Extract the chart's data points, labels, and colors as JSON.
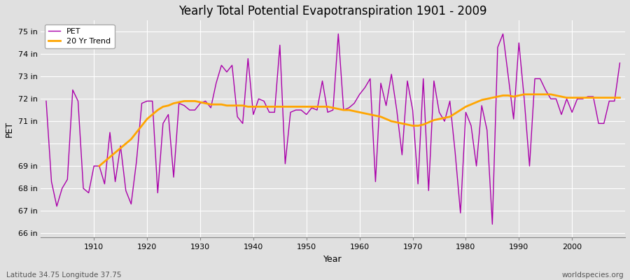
{
  "title": "Yearly Total Potential Evapotranspiration 1901 - 2009",
  "xlabel": "Year",
  "ylabel": "PET",
  "subtitle_lat_lon": "Latitude 34.75 Longitude 37.75",
  "watermark": "worldspecies.org",
  "ylim": [
    65.8,
    75.5
  ],
  "yticks": [
    66,
    67,
    68,
    69,
    70,
    71,
    72,
    73,
    74,
    75
  ],
  "ytick_labels": [
    "66 in",
    "67 in",
    "68 in",
    "69 in",
    "",
    "71 in",
    "72 in",
    "73 in",
    "74 in",
    "75 in"
  ],
  "xlim": [
    1900,
    2010
  ],
  "xticks": [
    1910,
    1920,
    1930,
    1940,
    1950,
    1960,
    1970,
    1980,
    1990,
    2000
  ],
  "pet_color": "#aa00aa",
  "trend_color": "#FFA500",
  "legend_pet": "PET",
  "legend_trend": "20 Yr Trend",
  "background_color": "#e0e0e0",
  "plot_bg_color": "#e0e0e0",
  "grid_color": "#ffffff",
  "years": [
    1901,
    1902,
    1903,
    1904,
    1905,
    1906,
    1907,
    1908,
    1909,
    1910,
    1911,
    1912,
    1913,
    1914,
    1915,
    1916,
    1917,
    1918,
    1919,
    1920,
    1921,
    1922,
    1923,
    1924,
    1925,
    1926,
    1927,
    1928,
    1929,
    1930,
    1931,
    1932,
    1933,
    1934,
    1935,
    1936,
    1937,
    1938,
    1939,
    1940,
    1941,
    1942,
    1943,
    1944,
    1945,
    1946,
    1947,
    1948,
    1949,
    1950,
    1951,
    1952,
    1953,
    1954,
    1955,
    1956,
    1957,
    1958,
    1959,
    1960,
    1961,
    1962,
    1963,
    1964,
    1965,
    1966,
    1967,
    1968,
    1969,
    1970,
    1971,
    1972,
    1973,
    1974,
    1975,
    1976,
    1977,
    1978,
    1979,
    1980,
    1981,
    1982,
    1983,
    1984,
    1985,
    1986,
    1987,
    1988,
    1989,
    1990,
    1991,
    1992,
    1993,
    1994,
    1995,
    1996,
    1997,
    1998,
    1999,
    2000,
    2001,
    2002,
    2003,
    2004,
    2005,
    2006,
    2007,
    2008,
    2009
  ],
  "pet_values": [
    71.9,
    68.3,
    67.2,
    68.0,
    68.4,
    72.4,
    71.9,
    68.0,
    67.8,
    69.0,
    69.0,
    68.2,
    70.5,
    68.3,
    69.9,
    67.9,
    67.3,
    69.2,
    71.8,
    71.9,
    71.9,
    67.8,
    70.9,
    71.3,
    68.5,
    71.8,
    71.7,
    71.5,
    71.5,
    71.8,
    71.9,
    71.6,
    72.7,
    73.5,
    73.2,
    73.5,
    71.2,
    70.9,
    73.8,
    71.3,
    72.0,
    71.9,
    71.4,
    71.4,
    74.4,
    69.1,
    71.4,
    71.5,
    71.5,
    71.3,
    71.6,
    71.5,
    72.8,
    71.4,
    71.5,
    74.9,
    71.5,
    71.6,
    71.8,
    72.2,
    72.5,
    72.9,
    68.3,
    72.7,
    71.7,
    73.1,
    71.5,
    69.5,
    72.8,
    71.5,
    68.2,
    72.9,
    67.9,
    72.8,
    71.4,
    71.0,
    71.9,
    69.6,
    66.9,
    71.4,
    70.8,
    69.0,
    71.7,
    70.6,
    66.4,
    74.3,
    74.9,
    73.0,
    71.1,
    74.5,
    72.0,
    69.0,
    72.9,
    72.9,
    72.4,
    72.0,
    72.0,
    71.3,
    72.0,
    71.4,
    72.0,
    72.0,
    72.1,
    72.1,
    70.9,
    70.9,
    71.9,
    71.9,
    73.6
  ],
  "trend_years": [
    1911,
    1912,
    1913,
    1914,
    1915,
    1916,
    1917,
    1918,
    1919,
    1920,
    1921,
    1922,
    1923,
    1924,
    1925,
    1926,
    1927,
    1928,
    1929,
    1930,
    1931,
    1932,
    1933,
    1934,
    1935,
    1936,
    1937,
    1938,
    1939,
    1940,
    1941,
    1942,
    1943,
    1944,
    1945,
    1946,
    1947,
    1948,
    1949,
    1950,
    1951,
    1952,
    1953,
    1954,
    1955,
    1956,
    1957,
    1958,
    1959,
    1960,
    1961,
    1962,
    1963,
    1964,
    1965,
    1966,
    1967,
    1968,
    1969,
    1970,
    1971,
    1972,
    1973,
    1974,
    1975,
    1976,
    1977,
    1978,
    1979,
    1980,
    1981,
    1982,
    1983,
    1984,
    1985,
    1986,
    1987,
    1988,
    1989,
    1990,
    1991,
    1992,
    1993,
    1994,
    1995,
    1996,
    1997,
    1998,
    1999,
    2000,
    2001,
    2002,
    2003,
    2004,
    2005,
    2006,
    2007,
    2008,
    2009
  ],
  "trend_values": [
    69.0,
    69.2,
    69.4,
    69.6,
    69.8,
    70.0,
    70.2,
    70.5,
    70.8,
    71.1,
    71.3,
    71.5,
    71.65,
    71.7,
    71.8,
    71.85,
    71.9,
    71.9,
    71.9,
    71.85,
    71.8,
    71.75,
    71.75,
    71.75,
    71.7,
    71.7,
    71.7,
    71.7,
    71.65,
    71.65,
    71.65,
    71.65,
    71.65,
    71.65,
    71.65,
    71.65,
    71.65,
    71.65,
    71.65,
    71.65,
    71.65,
    71.65,
    71.65,
    71.65,
    71.6,
    71.55,
    71.5,
    71.5,
    71.45,
    71.4,
    71.35,
    71.3,
    71.25,
    71.2,
    71.1,
    71.0,
    70.95,
    70.9,
    70.85,
    70.8,
    70.8,
    70.85,
    70.95,
    71.05,
    71.1,
    71.15,
    71.2,
    71.35,
    71.5,
    71.65,
    71.75,
    71.85,
    71.95,
    72.0,
    72.05,
    72.1,
    72.15,
    72.15,
    72.1,
    72.15,
    72.2,
    72.2,
    72.2,
    72.2,
    72.2,
    72.2,
    72.15,
    72.1,
    72.05,
    72.05,
    72.05,
    72.05,
    72.05,
    72.05,
    72.05,
    72.05,
    72.05,
    72.05,
    72.05
  ]
}
